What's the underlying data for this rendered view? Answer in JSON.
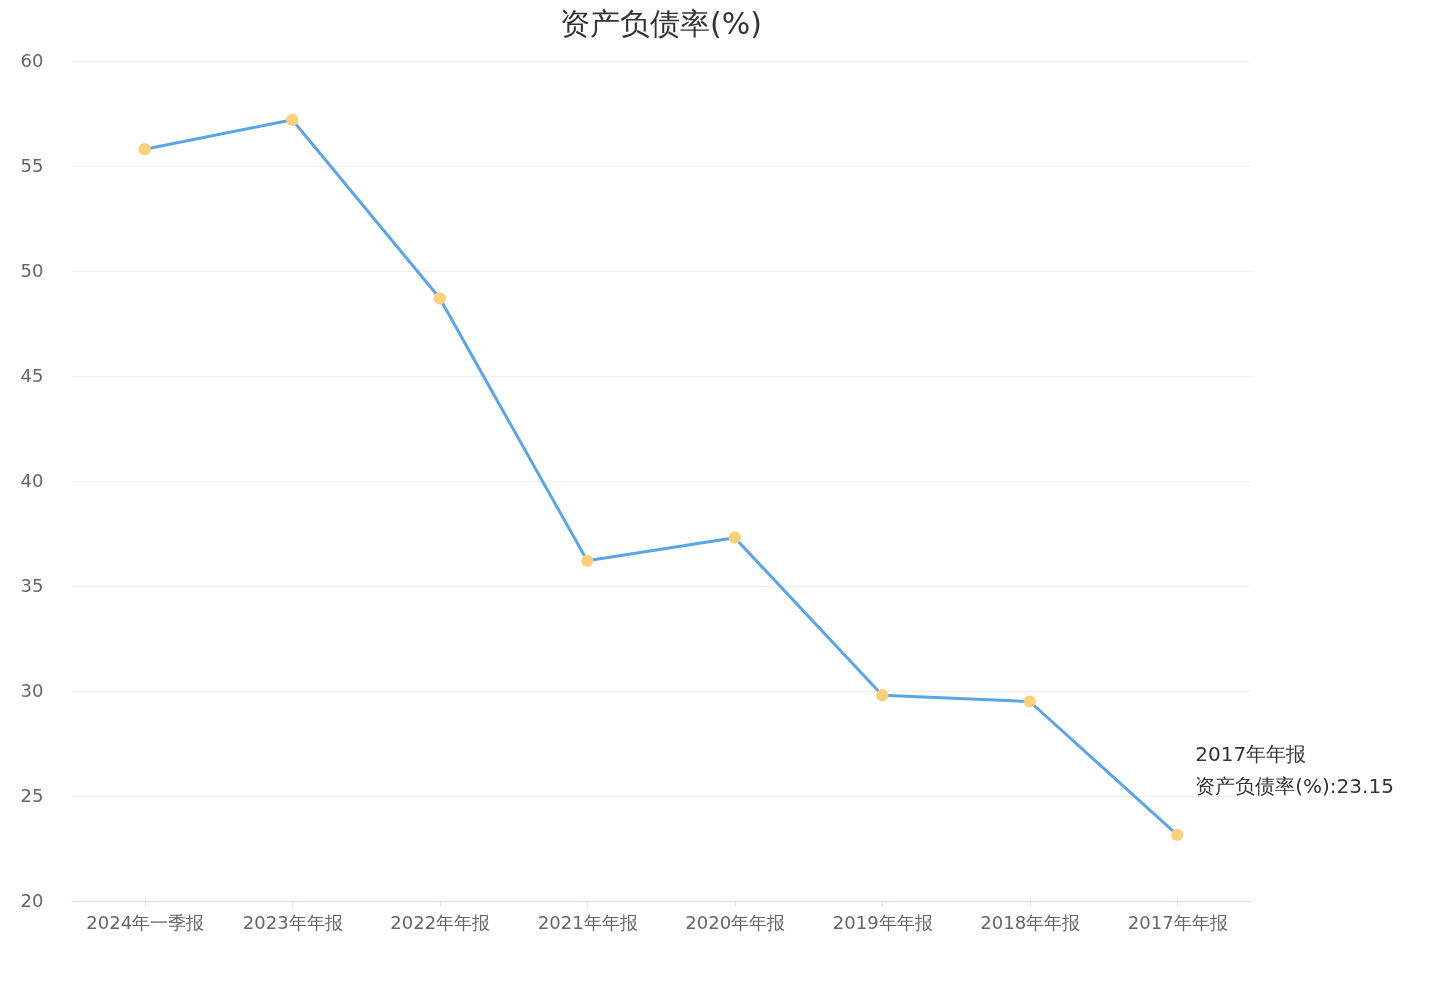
{
  "chart_data": {
    "type": "line",
    "title": "资产负债率(%)",
    "categories": [
      "2024年一季报",
      "2023年年报",
      "2022年年报",
      "2021年年报",
      "2020年年报",
      "2019年年报",
      "2018年年报",
      "2017年年报"
    ],
    "series": [
      {
        "color": "#5aa5e8",
        "values": [
          55.8,
          57.2,
          48.7,
          36.2,
          37.3,
          29.8,
          29.5,
          23.15
        ]
      }
    ],
    "marker": "circle",
    "ylim": [
      20,
      60
    ],
    "yticks": [
      20,
      25,
      30,
      35,
      40,
      45,
      50,
      55,
      60
    ],
    "grid": "y",
    "annotations": [
      "2017年年报",
      {
        "text": "资产负债率(%):23.15",
        "x": "2017年年报",
        "y": 23.15
      }
    ]
  }
}
